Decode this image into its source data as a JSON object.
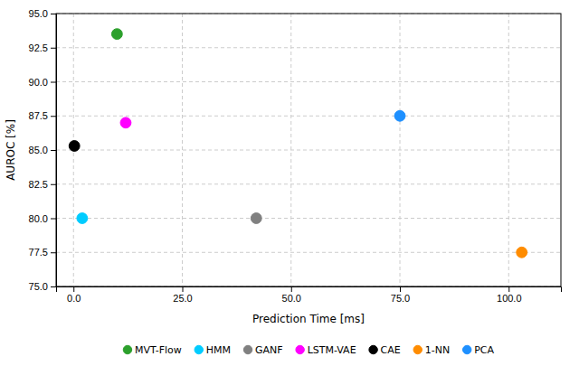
{
  "chart_data": {
    "type": "scatter",
    "x_label": "Prediction Time [ms]",
    "y_label": "AUROC [%]",
    "series": [
      {
        "name": "MVT-Flow",
        "color": "#2ca02c",
        "marker": "circle",
        "x": [
          10.0
        ],
        "values": [
          93.5
        ]
      },
      {
        "name": "HMM",
        "color": "#00ccff",
        "marker": "circle",
        "x": [
          2.0
        ],
        "values": [
          80.0
        ]
      },
      {
        "name": "GANF",
        "color": "#808080",
        "marker": "circle",
        "x": [
          42.0
        ],
        "values": [
          80.0
        ]
      },
      {
        "name": "LSTM-VAE",
        "color": "#ff00ff",
        "marker": "circle",
        "x": [
          12.0
        ],
        "values": [
          87.0
        ]
      },
      {
        "name": "CAE",
        "color": "#000000",
        "marker": "circle",
        "x": [
          0.2
        ],
        "values": [
          85.3
        ]
      },
      {
        "name": "1-NN",
        "color": "#ff8c00",
        "marker": "circle",
        "x": [
          103.0
        ],
        "values": [
          77.5
        ]
      },
      {
        "name": "PCA",
        "color": "#1e90ff",
        "marker": "circle",
        "x": [
          75.0
        ],
        "values": [
          87.5
        ]
      }
    ],
    "xlim": [
      -4.0,
      112.0
    ],
    "ylim": [
      75.0,
      95.0
    ],
    "xticks": [
      {
        "value": 0,
        "label": "0.0"
      },
      {
        "value": 25,
        "label": "25.0"
      },
      {
        "value": 50,
        "label": "50.0"
      },
      {
        "value": 75,
        "label": "75.0"
      },
      {
        "value": 100,
        "label": "100.0"
      }
    ],
    "yticks": [
      {
        "value": 75,
        "label": "75.0"
      },
      77.5,
      {
        "value": 80,
        "label": "80.0"
      },
      82.5,
      {
        "value": 85,
        "label": "85.0"
      },
      87.5,
      {
        "value": 90,
        "label": "90.0"
      },
      92.5,
      {
        "value": 95,
        "label": "95.0"
      }
    ],
    "grid": true,
    "legend": "bottom"
  }
}
